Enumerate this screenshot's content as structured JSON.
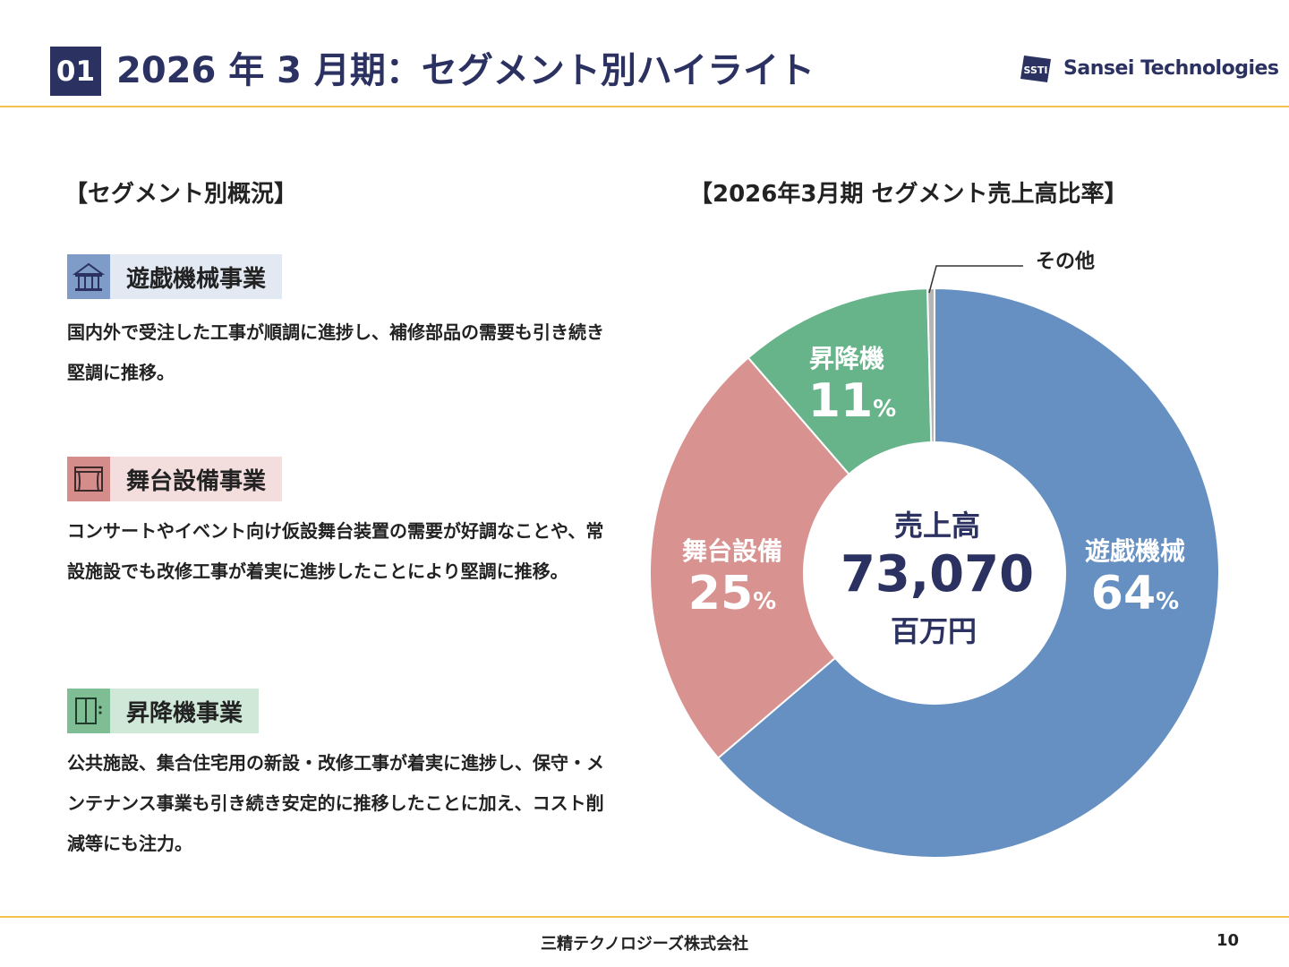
{
  "header": {
    "badge": "01",
    "title": "2026 年 3 月期：セグメント別ハイライト",
    "logo_mark": "SSTI",
    "logo_text": "Sansei Technologies"
  },
  "left": {
    "section_title": "【セグメント別概況】",
    "segments": [
      {
        "label": "遊戯機械事業",
        "icon": "carousel-icon",
        "description": "国内外で受注した工事が順調に進捗し、補修部品の需要も引き続き堅調に推移。"
      },
      {
        "label": "舞台設備事業",
        "icon": "stage-curtain-icon",
        "description": "コンサートやイベント向け仮設舞台装置の需要が好調なことや、常設施設でも改修工事が着実に進捗したことにより堅調に推移。"
      },
      {
        "label": "昇降機事業",
        "icon": "elevator-icon",
        "description": "公共施設、集合住宅用の新設・改修工事が着実に進捗し、保守・メンテナンス事業も引き続き安定的に推移したことに加え、コスト削減等にも注力。"
      }
    ]
  },
  "chart_data": {
    "type": "pie",
    "title": "【2026年3月期 セグメント売上高比率】",
    "donut": true,
    "center": {
      "label": "売上高",
      "value": "73,070",
      "unit": "百万円"
    },
    "slices": [
      {
        "name": "遊戯機械",
        "value": 64,
        "display": "64",
        "suffix": "%",
        "color": "#6690c2"
      },
      {
        "name": "舞台設備",
        "value": 25,
        "display": "25",
        "suffix": "%",
        "color": "#d89391"
      },
      {
        "name": "昇降機",
        "value": 11,
        "display": "11",
        "suffix": "%",
        "color": "#67b38a"
      },
      {
        "name": "その他",
        "value": 0.4,
        "display": "",
        "suffix": "",
        "color": "#b5b5b5"
      }
    ]
  },
  "footer": {
    "company": "三精テクノロジーズ株式会社",
    "page": "10"
  }
}
